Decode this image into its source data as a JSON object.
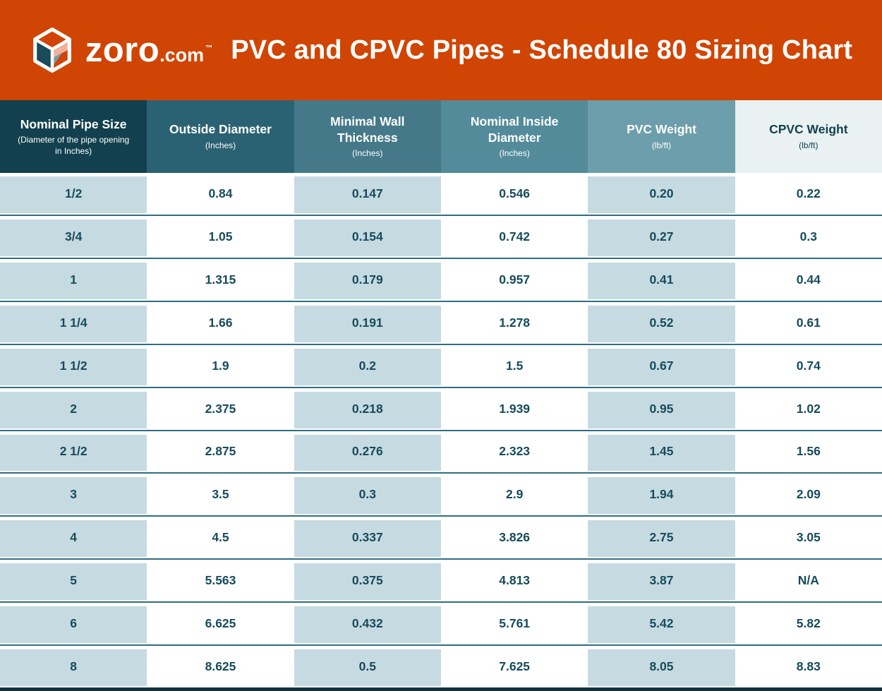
{
  "banner": {
    "brand": "zoro",
    "brand_suffix": ".com",
    "trademark": "™",
    "title": "PVC and CPVC Pipes - Schedule 80 Sizing Chart"
  },
  "chart_data": {
    "type": "table",
    "title": "PVC and CPVC Pipes - Schedule 80 Sizing Chart",
    "columns": [
      {
        "label": "Nominal Pipe Size",
        "sub": "(Diameter of the pipe opening in Inches)"
      },
      {
        "label": "Outside Diameter",
        "sub": "(Inches)"
      },
      {
        "label": "Minimal Wall Thickness",
        "sub": "(Inches)"
      },
      {
        "label": "Nominal Inside Diameter",
        "sub": "(Inches)"
      },
      {
        "label": "PVC Weight",
        "sub": "(lb/ft)"
      },
      {
        "label": "CPVC Weight",
        "sub": "(lb/ft)"
      }
    ],
    "rows": [
      [
        "1/2",
        "0.84",
        "0.147",
        "0.546",
        "0.20",
        "0.22"
      ],
      [
        "3/4",
        "1.05",
        "0.154",
        "0.742",
        "0.27",
        "0.3"
      ],
      [
        "1",
        "1.315",
        "0.179",
        "0.957",
        "0.41",
        "0.44"
      ],
      [
        "1 1/4",
        "1.66",
        "0.191",
        "1.278",
        "0.52",
        "0.61"
      ],
      [
        "1 1/2",
        "1.9",
        "0.2",
        "1.5",
        "0.67",
        "0.74"
      ],
      [
        "2",
        "2.375",
        "0.218",
        "1.939",
        "0.95",
        "1.02"
      ],
      [
        "2 1/2",
        "2.875",
        "0.276",
        "2.323",
        "1.45",
        "1.56"
      ],
      [
        "3",
        "3.5",
        "0.3",
        "2.9",
        "1.94",
        "2.09"
      ],
      [
        "4",
        "4.5",
        "0.337",
        "3.826",
        "2.75",
        "3.05"
      ],
      [
        "5",
        "5.563",
        "0.375",
        "4.813",
        "3.87",
        "N/A"
      ],
      [
        "6",
        "6.625",
        "0.432",
        "5.761",
        "5.42",
        "5.82"
      ],
      [
        "8",
        "8.625",
        "0.5",
        "7.625",
        "8.05",
        "8.83"
      ]
    ]
  },
  "colors": {
    "banner_bg": "#D04504",
    "header_bgs": [
      "#12404E",
      "#2B6273",
      "#45798A",
      "#538B9A",
      "#6C9EAB",
      "#E9F1F3"
    ],
    "header_text": [
      "#FFFFFF",
      "#FFFFFF",
      "#FFFFFF",
      "#FFFFFF",
      "#FFFFFF",
      "#12404E"
    ],
    "row_blue": "#C6DAE1",
    "row_white": "#FFFFFF",
    "cell_text": "#164B5C",
    "divider": "#2E6F80",
    "table_bottom_border": "#10303B",
    "logo_outline": "#FFFFFF",
    "logo_left_face": "#1B4B59",
    "logo_flap": "#EFB29B",
    "logo_shadow": "#7E99A7"
  }
}
